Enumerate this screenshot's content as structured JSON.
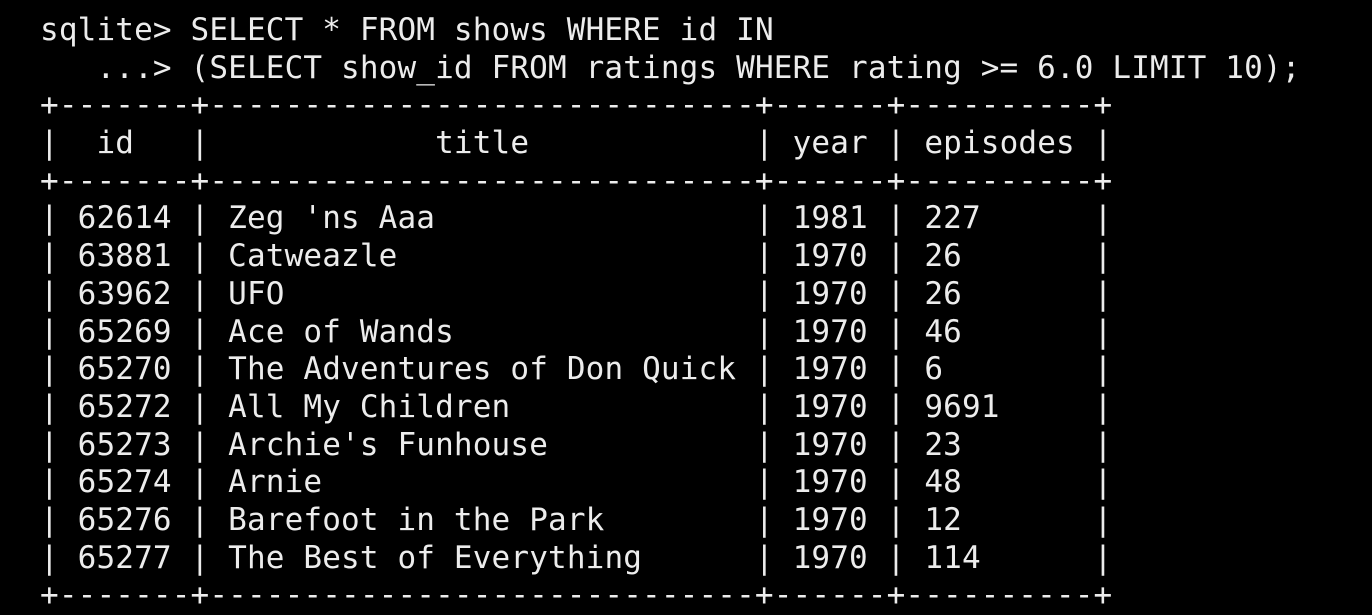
{
  "terminal": {
    "prompt": "sqlite>",
    "continuation_prompt": "   ...>",
    "command_line_1": "SELECT * FROM shows WHERE id IN",
    "command_line_2": "(SELECT show_id FROM ratings WHERE rating >= 6.0 LIMIT 10);"
  },
  "table": {
    "columns": [
      {
        "name": "id",
        "align": "center"
      },
      {
        "name": "title",
        "align": "center"
      },
      {
        "name": "year",
        "align": "center"
      },
      {
        "name": "episodes",
        "align": "center"
      }
    ],
    "rows": [
      [
        "62614",
        "Zeg 'ns Aaa",
        "1981",
        "227"
      ],
      [
        "63881",
        "Catweazle",
        "1970",
        "26"
      ],
      [
        "63962",
        "UFO",
        "1970",
        "26"
      ],
      [
        "65269",
        "Ace of Wands",
        "1970",
        "46"
      ],
      [
        "65270",
        "The Adventures of Don Quick",
        "1970",
        "6"
      ],
      [
        "65272",
        "All My Children",
        "1970",
        "9691"
      ],
      [
        "65273",
        "Archie's Funhouse",
        "1970",
        "23"
      ],
      [
        "65274",
        "Arnie",
        "1970",
        "48"
      ],
      [
        "65276",
        "Barefoot in the Park",
        "1970",
        "12"
      ],
      [
        "65277",
        "The Best of Everything",
        "1970",
        "114"
      ]
    ]
  }
}
